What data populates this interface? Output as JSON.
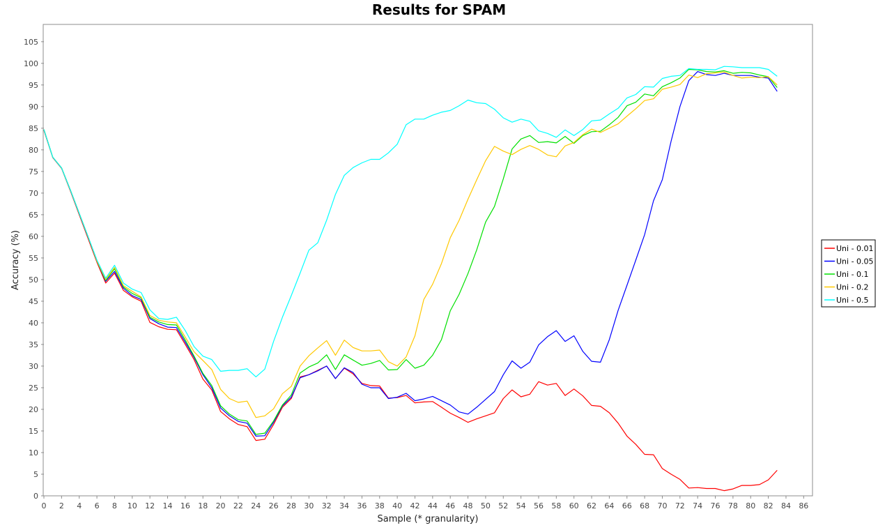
{
  "chart_data": {
    "type": "line",
    "title": "Results for SPAM",
    "xlabel": "Sample (* granularity)",
    "ylabel": "Accuracy (%)",
    "xlim": [
      0,
      87
    ],
    "ylim": [
      0,
      109
    ],
    "xticks": [
      0,
      2,
      4,
      6,
      8,
      10,
      12,
      14,
      16,
      18,
      20,
      22,
      24,
      26,
      28,
      30,
      32,
      34,
      36,
      38,
      40,
      42,
      44,
      46,
      48,
      50,
      52,
      54,
      56,
      58,
      60,
      62,
      64,
      66,
      68,
      70,
      72,
      74,
      76,
      78,
      80,
      82,
      84,
      86
    ],
    "yticks": [
      0,
      5,
      10,
      15,
      20,
      25,
      30,
      35,
      40,
      45,
      50,
      55,
      60,
      65,
      70,
      75,
      80,
      85,
      90,
      95,
      100,
      105
    ],
    "grid": false,
    "legend_position": "right",
    "series": [
      {
        "name": "Uni - 0.01",
        "color": "#ff0000",
        "x": [
          0,
          1,
          2,
          3,
          4,
          5,
          6,
          7,
          8,
          9,
          10,
          11,
          12,
          13,
          14,
          15,
          16,
          17,
          18,
          19,
          20,
          21,
          22,
          23,
          24,
          25,
          26,
          27,
          28,
          29,
          30,
          31,
          32,
          33,
          34,
          35,
          36,
          37,
          38,
          39,
          40,
          41,
          42,
          43,
          44,
          45,
          46,
          47,
          48,
          49,
          50,
          51,
          52,
          53,
          54,
          55,
          56,
          57,
          58,
          59,
          60,
          61,
          62,
          63,
          64,
          65,
          66,
          67,
          68,
          69,
          70,
          71,
          72,
          73,
          74,
          75,
          76,
          77,
          78,
          79,
          80,
          81,
          82,
          83
        ],
        "values": [
          84.5,
          78.2,
          75.7,
          70.5,
          65,
          59.5,
          54,
          49.2,
          51.5,
          47.5,
          46,
          45,
          40.1,
          39.1,
          38.5,
          38.4,
          35,
          31.5,
          27,
          24.5,
          19.5,
          17.8,
          16.5,
          16,
          12.8,
          13.1,
          16.5,
          20.5,
          22.5,
          27.5,
          28,
          29,
          30,
          27.1,
          29.5,
          28.2,
          26,
          25.5,
          25.4,
          22.6,
          22.7,
          23.2,
          21.5,
          21.7,
          21.8,
          20.5,
          19.1,
          18.1,
          17,
          17.8,
          18.5,
          19.2,
          22.5,
          24.5,
          22.9,
          23.5,
          26.4,
          25.6,
          26,
          23.2,
          24.7,
          23.1,
          20.9,
          20.7,
          19.2,
          16.8,
          13.8,
          11.9,
          9.6,
          9.5,
          6.3,
          5,
          3.8,
          1.8,
          1.9,
          1.7,
          1.7,
          1.2,
          1.6,
          2.4,
          2.4,
          2.6,
          3.7,
          5.9
        ]
      },
      {
        "name": "Uni - 0.05",
        "color": "#0000ff",
        "x": [
          0,
          1,
          2,
          3,
          4,
          5,
          6,
          7,
          8,
          9,
          10,
          11,
          12,
          13,
          14,
          15,
          16,
          17,
          18,
          19,
          20,
          21,
          22,
          23,
          24,
          25,
          26,
          27,
          28,
          29,
          30,
          31,
          32,
          33,
          34,
          35,
          36,
          37,
          38,
          39,
          40,
          41,
          42,
          43,
          44,
          45,
          46,
          47,
          48,
          49,
          50,
          51,
          52,
          53,
          54,
          55,
          56,
          57,
          58,
          59,
          60,
          61,
          62,
          63,
          64,
          65,
          66,
          67,
          68,
          69,
          70,
          71,
          72,
          73,
          74,
          75,
          76,
          77,
          78,
          79,
          80,
          81,
          82,
          83
        ],
        "values": [
          84.7,
          78.3,
          75.8,
          70.7,
          65.3,
          59.9,
          54.3,
          49.6,
          51.9,
          48,
          46.3,
          45.4,
          41,
          39.8,
          39,
          38.9,
          35.5,
          32,
          28,
          25,
          20.3,
          18.5,
          17.2,
          16.8,
          13.8,
          13.9,
          17,
          20.8,
          22.8,
          27.3,
          28,
          28.9,
          30,
          27.1,
          29.6,
          28.5,
          25.8,
          25,
          25,
          22.5,
          22.8,
          23.7,
          22,
          22.4,
          23,
          22,
          21,
          19.4,
          18.9,
          20.5,
          22.3,
          24.1,
          28,
          31.2,
          29.5,
          30.9,
          34.9,
          36.8,
          38.2,
          35.7,
          37,
          33.4,
          31.1,
          30.9,
          36.1,
          42.9,
          48.7,
          54.5,
          60.4,
          68.2,
          73.1,
          82,
          90,
          96,
          98.1,
          97.4,
          97.2,
          97.7,
          97.2,
          97.2,
          97.2,
          96.8,
          96.6,
          93.5
        ]
      },
      {
        "name": "Uni - 0.1",
        "color": "#00e000",
        "x": [
          0,
          1,
          2,
          3,
          4,
          5,
          6,
          7,
          8,
          9,
          10,
          11,
          12,
          13,
          14,
          15,
          16,
          17,
          18,
          19,
          20,
          21,
          22,
          23,
          24,
          25,
          26,
          27,
          28,
          29,
          30,
          31,
          32,
          33,
          34,
          35,
          36,
          37,
          38,
          39,
          40,
          41,
          42,
          43,
          44,
          45,
          46,
          47,
          48,
          49,
          50,
          51,
          52,
          53,
          54,
          55,
          56,
          57,
          58,
          59,
          60,
          61,
          62,
          63,
          64,
          65,
          66,
          67,
          68,
          69,
          70,
          71,
          72,
          73,
          74,
          75,
          76,
          77,
          78,
          79,
          80,
          81,
          82,
          83
        ],
        "values": [
          84.7,
          78.3,
          75.8,
          70.7,
          65.3,
          59.9,
          54.3,
          49.8,
          52.5,
          48.3,
          46.8,
          45.8,
          41.3,
          40.2,
          39.6,
          39.5,
          36,
          32.3,
          28.3,
          25.5,
          20.8,
          18.9,
          17.6,
          17.3,
          14.2,
          14.5,
          17.3,
          21,
          23.3,
          28.4,
          29.8,
          30.7,
          32.6,
          29.2,
          32.6,
          31.4,
          30.2,
          30.6,
          31.3,
          29.1,
          29.2,
          31.5,
          29.5,
          30.2,
          32.5,
          36.1,
          42.8,
          46.6,
          51.4,
          56.9,
          63.3,
          66.9,
          73.3,
          80.2,
          82.5,
          83.3,
          81.7,
          81.9,
          81.6,
          83.1,
          81.5,
          83.3,
          84.2,
          84.3,
          85.8,
          87.5,
          90.2,
          91,
          92.9,
          92.5,
          94.6,
          95.5,
          96.6,
          98.6,
          98.5,
          98.1,
          98,
          98.3,
          97.7,
          97.9,
          97.8,
          97.3,
          96.9,
          94.4
        ]
      },
      {
        "name": "Uni - 0.2",
        "color": "#ffc800",
        "x": [
          0,
          1,
          2,
          3,
          4,
          5,
          6,
          7,
          8,
          9,
          10,
          11,
          12,
          13,
          14,
          15,
          16,
          17,
          18,
          19,
          20,
          21,
          22,
          23,
          24,
          25,
          26,
          27,
          28,
          29,
          30,
          31,
          32,
          33,
          34,
          35,
          36,
          37,
          38,
          39,
          40,
          41,
          42,
          43,
          44,
          45,
          46,
          47,
          48,
          49,
          50,
          51,
          52,
          53,
          54,
          55,
          56,
          57,
          58,
          59,
          60,
          61,
          62,
          63,
          64,
          65,
          66,
          67,
          68,
          69,
          70,
          71,
          72,
          73,
          74,
          75,
          76,
          77,
          78,
          79,
          80,
          81,
          82,
          83
        ],
        "values": [
          84.7,
          78.3,
          75.8,
          70.7,
          65.3,
          59.9,
          54.3,
          50,
          52.8,
          48.6,
          47.3,
          46,
          41.7,
          40.6,
          40.2,
          40,
          36.7,
          33.3,
          31.3,
          29.2,
          24.6,
          22.5,
          21.6,
          21.9,
          18.1,
          18.5,
          20.1,
          23.6,
          25.3,
          30,
          32.4,
          34.2,
          35.9,
          32.5,
          36,
          34.3,
          33.5,
          33.5,
          33.7,
          31,
          30,
          32.1,
          37,
          45.4,
          48.9,
          53.7,
          59.7,
          63.7,
          68.6,
          73.1,
          77.5,
          80.8,
          79.7,
          78.9,
          80.1,
          81,
          80.1,
          78.8,
          78.4,
          80.9,
          81.7,
          83.5,
          84.8,
          84,
          85,
          86,
          87.8,
          89.5,
          91.4,
          91.8,
          94,
          94.5,
          95.1,
          97.3,
          96.7,
          97.6,
          97.8,
          98,
          97.2,
          96.6,
          96.8,
          96.7,
          96.9,
          95
        ]
      },
      {
        "name": "Uni - 0.5",
        "color": "#00ffff",
        "x": [
          0,
          1,
          2,
          3,
          4,
          5,
          6,
          7,
          8,
          9,
          10,
          11,
          12,
          13,
          14,
          15,
          16,
          17,
          18,
          19,
          20,
          21,
          22,
          23,
          24,
          25,
          26,
          27,
          28,
          29,
          30,
          31,
          32,
          33,
          34,
          35,
          36,
          37,
          38,
          39,
          40,
          41,
          42,
          43,
          44,
          45,
          46,
          47,
          48,
          49,
          50,
          51,
          52,
          53,
          54,
          55,
          56,
          57,
          58,
          59,
          60,
          61,
          62,
          63,
          64,
          65,
          66,
          67,
          68,
          69,
          70,
          71,
          72,
          73,
          74,
          75,
          76,
          77,
          78,
          79,
          80,
          81,
          82,
          83
        ],
        "values": [
          84.7,
          78.3,
          75.8,
          70.7,
          65.3,
          59.9,
          54.5,
          50.3,
          53.3,
          49.2,
          47.8,
          47,
          43,
          41,
          40.8,
          41.3,
          38.2,
          34.5,
          32.3,
          31.5,
          28.8,
          29,
          29,
          29.4,
          27.5,
          29.3,
          35.7,
          41.3,
          46.3,
          51.5,
          56.8,
          58.5,
          63.7,
          69.7,
          74.1,
          75.9,
          77,
          77.8,
          77.8,
          79.3,
          81.3,
          85.8,
          87.1,
          87.1,
          88,
          88.7,
          89.1,
          90.2,
          91.5,
          90.9,
          90.7,
          89.4,
          87.4,
          86.4,
          87.1,
          86.6,
          84.4,
          83.8,
          82.9,
          84.6,
          83.3,
          84.7,
          86.7,
          86.9,
          88.3,
          89.6,
          92,
          92.8,
          94.6,
          94.5,
          96.5,
          97,
          97.2,
          98.8,
          98.6,
          98.6,
          98.5,
          99.3,
          99.2,
          99,
          99,
          99,
          98.6,
          97
        ]
      }
    ]
  }
}
